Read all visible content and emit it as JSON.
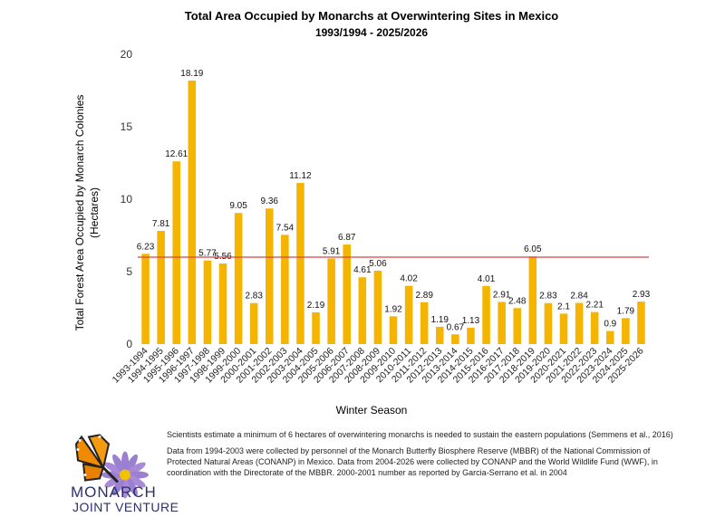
{
  "chart_data": {
    "type": "bar",
    "title": "Total Area Occupied by Monarchs at Overwintering Sites in Mexico",
    "subtitle": "1993/1994 - 2025/2026",
    "xlabel": "Winter Season",
    "ylabel": "Total Forest Area Occupied by Monarch Colonies",
    "ylabel2": "(Hectares)",
    "ylim": [
      0,
      20
    ],
    "yticks": [
      0,
      5,
      10,
      15,
      20
    ],
    "threshold": 6,
    "grid": false,
    "categories": [
      "1993-1994",
      "1994-1995",
      "1995-1996",
      "1996-1997",
      "1997-1998",
      "1998-1999",
      "1999-2000",
      "2000-2001",
      "2001-2002",
      "2002-2003",
      "2003-2004",
      "2004-2005",
      "2005-2006",
      "2006-2007",
      "2007-2008",
      "2008-2009",
      "2009-2010",
      "2010-2011",
      "2011-2012",
      "2012-2013",
      "2013-2014",
      "2014-2015",
      "2015-2016",
      "2016-2017",
      "2017-2018",
      "2018-2019",
      "2019-2020",
      "2020-2021",
      "2021-2022",
      "2022-2023",
      "2023-2024",
      "2024-2025",
      "2025-2026"
    ],
    "values": [
      6.23,
      7.81,
      12.61,
      18.19,
      5.77,
      5.56,
      9.05,
      2.83,
      9.36,
      7.54,
      11.12,
      2.19,
      5.91,
      6.87,
      4.61,
      5.06,
      1.92,
      4.02,
      2.89,
      1.19,
      0.67,
      1.13,
      4.01,
      2.91,
      2.48,
      6.05,
      2.83,
      2.1,
      2.84,
      2.21,
      0.9,
      1.79,
      2.93
    ],
    "labels": [
      "6.23",
      "7.81",
      "12.61",
      "18.19",
      "5.77",
      "5.56",
      "9.05",
      "2.83",
      "9.36",
      "7.54",
      "11.12",
      "2.19",
      "5.91",
      "6.87",
      "4.61",
      "5.06",
      "1.92",
      "4.02",
      "2.89",
      "1.19",
      "0.67",
      "1.13",
      "4.01",
      "2.91",
      "2.48",
      "6.05",
      "2.83",
      "2.1",
      "2.84",
      "2.21",
      "0.9",
      "1.79",
      "2.93"
    ],
    "bar_color": "#f5b400",
    "threshold_color": "#d64545"
  },
  "logo": {
    "line1": "MONARCH",
    "line2": "JOINT VENTURE"
  },
  "notes": {
    "p1": "Scientists estimate a minimum of 6 hectares of overwintering monarchs is needed to sustain the eastern populations (Semmens et al., 2016)",
    "p2": "Data from 1994-2003 were collected by personnel of the Monarch Butterfly Biosphere Reserve (MBBR) of the National Commission of Protected Natural Areas (CONANP) in Mexico. Data from 2004-2026 were collected by CONANP and the World Wildlife Fund (WWF), in coordination with the Directorate of the MBBR. 2000-2001 number as reported by Garcia-Serrano et al. in 2004"
  }
}
